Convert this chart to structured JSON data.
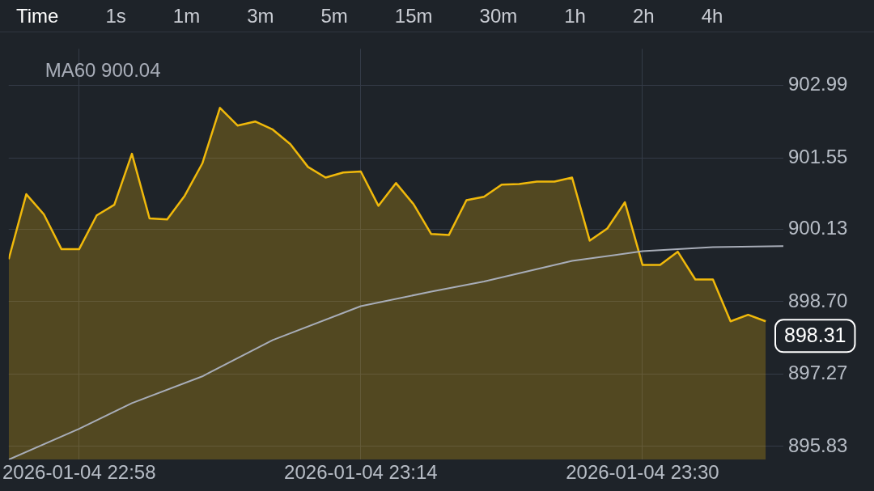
{
  "chart_data": {
    "type": "area",
    "x": [
      "2026-01-04T22:54",
      "2026-01-04T22:55",
      "2026-01-04T22:56",
      "2026-01-04T22:57",
      "2026-01-04T22:58",
      "2026-01-04T22:59",
      "2026-01-04T23:00",
      "2026-01-04T23:01",
      "2026-01-04T23:02",
      "2026-01-04T23:03",
      "2026-01-04T23:04",
      "2026-01-04T23:05",
      "2026-01-04T23:06",
      "2026-01-04T23:07",
      "2026-01-04T23:08",
      "2026-01-04T23:09",
      "2026-01-04T23:10",
      "2026-01-04T23:11",
      "2026-01-04T23:12",
      "2026-01-04T23:13",
      "2026-01-04T23:14",
      "2026-01-04T23:15",
      "2026-01-04T23:16",
      "2026-01-04T23:17",
      "2026-01-04T23:18",
      "2026-01-04T23:19",
      "2026-01-04T23:20",
      "2026-01-04T23:21",
      "2026-01-04T23:22",
      "2026-01-04T23:23",
      "2026-01-04T23:24",
      "2026-01-04T23:25",
      "2026-01-04T23:26",
      "2026-01-04T23:27",
      "2026-01-04T23:28",
      "2026-01-04T23:29",
      "2026-01-04T23:30",
      "2026-01-04T23:31",
      "2026-01-04T23:32",
      "2026-01-04T23:33",
      "2026-01-04T23:34",
      "2026-01-04T23:35",
      "2026-01-04T23:36",
      "2026-01-04T23:37"
    ],
    "series": [
      {
        "color": "#f0b90b",
        "values": [
          899.54,
          900.83,
          900.43,
          899.74,
          899.74,
          900.41,
          900.62,
          901.63,
          900.35,
          900.33,
          900.8,
          901.44,
          902.54,
          902.19,
          902.27,
          902.11,
          901.82,
          901.37,
          901.16,
          901.26,
          901.28,
          900.6,
          901.05,
          900.63,
          900.04,
          900.02,
          900.71,
          900.78,
          901.02,
          901.03,
          901.08,
          901.08,
          901.16,
          899.91,
          900.15,
          900.67,
          899.43,
          899.43,
          899.69,
          899.14,
          899.14,
          898.31,
          898.44,
          898.31
        ]
      },
      {
        "type": "line",
        "name": "MA60 900.04",
        "color": "#a8adb8",
        "x": [
          "2026-01-04T22:54",
          "2026-01-04T22:58",
          "2026-01-04T23:01",
          "2026-01-04T23:05",
          "2026-01-04T23:09",
          "2026-01-04T23:14",
          "2026-01-04T23:18",
          "2026-01-04T23:21",
          "2026-01-04T23:26",
          "2026-01-04T23:30",
          "2026-01-04T23:34",
          "2026-01-04T23:38"
        ],
        "values": [
          895.57,
          896.18,
          896.69,
          897.22,
          897.94,
          898.61,
          898.9,
          899.1,
          899.51,
          899.7,
          899.78,
          899.8
        ]
      }
    ],
    "xlim": [
      "2026-01-04T22:54",
      "2026-01-04T23:38"
    ],
    "xticks": [
      {
        "value": "2026-01-04T22:58",
        "label": "2026-01-04 22:58"
      },
      {
        "value": "2026-01-04T23:14",
        "label": "2026-01-04 23:14"
      },
      {
        "value": "2026-01-04T23:30",
        "label": "2026-01-04 23:30"
      }
    ],
    "ylim": [
      895.57,
      903.71
    ],
    "yticks": [
      {
        "value": 895.83,
        "label": "895.83"
      },
      {
        "value": 897.27,
        "label": "897.27"
      },
      {
        "value": 898.7,
        "label": "898.70"
      },
      {
        "value": 900.13,
        "label": "900.13"
      },
      {
        "value": 901.55,
        "label": "901.55"
      },
      {
        "value": 902.99,
        "label": "902.99"
      }
    ],
    "grid": true,
    "legend": "top left",
    "marker": "none",
    "line_style": "solid",
    "annotations": [
      "Time",
      "1s",
      "1m",
      "3m",
      "5m",
      "15m",
      "30m",
      "1h",
      "2h",
      "4h",
      "898.31"
    ]
  }
}
